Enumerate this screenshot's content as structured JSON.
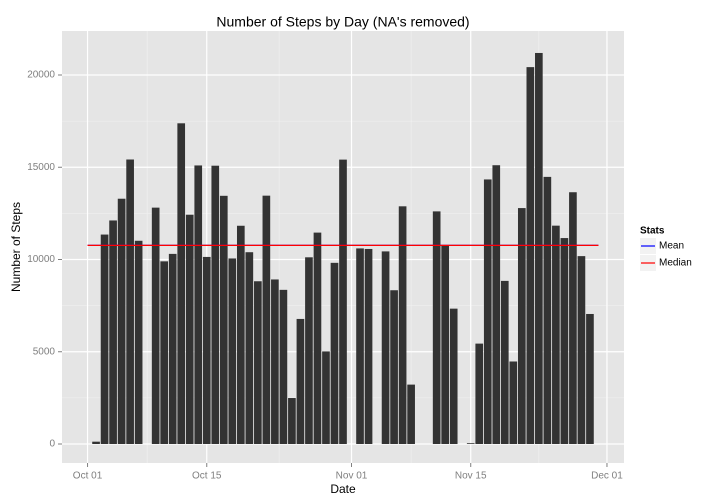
{
  "chart_data": {
    "type": "bar",
    "title": "Number of Steps by Day (NA's removed)",
    "x_label": "Date",
    "y_label": "Number of Steps",
    "color": "#333333",
    "x": [
      "Oct 02",
      "Oct 03",
      "Oct 04",
      "Oct 05",
      "Oct 06",
      "Oct 07",
      "Oct 09",
      "Oct 10",
      "Oct 11",
      "Oct 12",
      "Oct 13",
      "Oct 14",
      "Oct 15",
      "Oct 16",
      "Oct 17",
      "Oct 18",
      "Oct 19",
      "Oct 20",
      "Oct 21",
      "Oct 22",
      "Oct 23",
      "Oct 24",
      "Oct 25",
      "Oct 26",
      "Oct 27",
      "Oct 28",
      "Oct 29",
      "Oct 30",
      "Oct 31",
      "Nov 02",
      "Nov 03",
      "Nov 05",
      "Nov 06",
      "Nov 07",
      "Nov 08",
      "Nov 11",
      "Nov 12",
      "Nov 13",
      "Nov 15",
      "Nov 16",
      "Nov 17",
      "Nov 18",
      "Nov 19",
      "Nov 20",
      "Nov 21",
      "Nov 22",
      "Nov 23",
      "Nov 24",
      "Nov 25",
      "Nov 26",
      "Nov 27",
      "Nov 28",
      "Nov 29"
    ],
    "values": [
      126,
      11352,
      12116,
      13294,
      15420,
      11015,
      12811,
      9900,
      10304,
      17382,
      12426,
      15098,
      10139,
      15084,
      13452,
      10056,
      11829,
      10395,
      8821,
      13460,
      8918,
      8355,
      2492,
      6778,
      10119,
      11458,
      5018,
      9819,
      15414,
      10600,
      10571,
      10439,
      8334,
      12883,
      3219,
      12608,
      10765,
      7336,
      41,
      5441,
      14339,
      15110,
      8841,
      4472,
      12787,
      20427,
      21194,
      14478,
      11834,
      11162,
      13646,
      10183,
      7047
    ],
    "xlim": [
      "Sep 28",
      "Dec 03"
    ],
    "xticks": [
      "Oct 01",
      "Oct 15",
      "Nov 01",
      "Nov 15",
      "Dec 01"
    ],
    "ylim": [
      -1030,
      22385
    ],
    "yticks": [
      0,
      5000,
      10000,
      15000,
      20000
    ],
    "grid": true,
    "legend_title": "Stats",
    "legend_position": "right",
    "lines": [
      {
        "name": "Mean",
        "color": "#0000ff",
        "value": 10766.19,
        "span": [
          "Oct 01",
          "Nov 30"
        ]
      },
      {
        "name": "Median",
        "color": "#ff0000",
        "value": 10765,
        "span": [
          "Oct 01",
          "Nov 30"
        ]
      }
    ]
  }
}
